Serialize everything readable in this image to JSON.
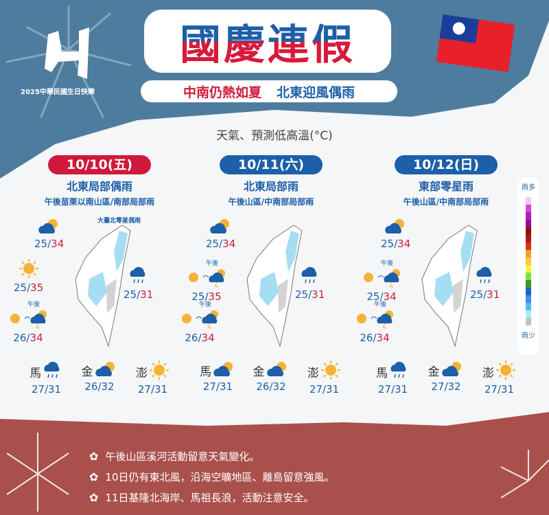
{
  "header": {
    "title": "國慶連假",
    "subtitle_red": "中南仍熱如夏",
    "subtitle_blue": "北東迎風偶雨",
    "logo_caption": "2025中華民國生日快樂"
  },
  "colors": {
    "top_bg": "#4e7c9e",
    "bottom_bg": "#a9504c",
    "blue": "#1d5fa8",
    "red": "#d0193a"
  },
  "section_title": "天氣、預測低高溫(°C)",
  "days": [
    {
      "date": "10/10(五)",
      "pill_color": "#d0193a",
      "headline": "北東局部偶雨",
      "sub": "午後苗栗以南山區/南部局部雨",
      "note": "大臺北零星偶雨",
      "stations": [
        {
          "pos": "nw",
          "icon": "partly-cloudy",
          "low": "25",
          "high": "34"
        },
        {
          "pos": "w",
          "icon": "sunny",
          "low": "25",
          "high": "35"
        },
        {
          "pos": "sw",
          "icon": "sunny-then-thunder",
          "label": "午後",
          "low": "26",
          "high": "34"
        },
        {
          "pos": "e",
          "icon": "rain",
          "low": "25",
          "high": "31"
        }
      ],
      "islands": [
        {
          "name": "馬",
          "icon": "rain",
          "temp": "27/31"
        },
        {
          "name": "金",
          "icon": "partly-cloudy",
          "temp": "26/32"
        },
        {
          "name": "澎",
          "icon": "sunny",
          "temp": "27/31"
        }
      ]
    },
    {
      "date": "10/11(六)",
      "pill_color": "#1d5fa8",
      "headline": "北東局部雨",
      "sub": "午後山區/中南部局部雨",
      "stations": [
        {
          "pos": "nw",
          "icon": "partly-cloudy",
          "low": "25",
          "high": "34"
        },
        {
          "pos": "w",
          "icon": "sunny-then-thunder",
          "label": "午後",
          "low": "25",
          "high": "35"
        },
        {
          "pos": "sw",
          "icon": "sunny-then-thunder",
          "label": "午後",
          "low": "26",
          "high": "34"
        },
        {
          "pos": "e",
          "icon": "rain",
          "low": "25",
          "high": "31"
        }
      ],
      "islands": [
        {
          "name": "馬",
          "icon": "partly-cloudy",
          "temp": "27/31"
        },
        {
          "name": "金",
          "icon": "partly-cloudy",
          "temp": "26/32"
        },
        {
          "name": "澎",
          "icon": "sunny",
          "temp": "27/31"
        }
      ]
    },
    {
      "date": "10/12(日)",
      "pill_color": "#1d5fa8",
      "headline": "東部零星雨",
      "sub": "午後山區/中南部局部雨",
      "stations": [
        {
          "pos": "nw",
          "icon": "partly-cloudy",
          "low": "25",
          "high": "34"
        },
        {
          "pos": "w",
          "icon": "sunny-then-thunder",
          "label": "午後",
          "low": "25",
          "high": "34"
        },
        {
          "pos": "sw",
          "icon": "sunny-then-thunder",
          "label": "午後",
          "low": "26",
          "high": "34"
        },
        {
          "pos": "e",
          "icon": "rain",
          "low": "25",
          "high": "31"
        }
      ],
      "islands": [
        {
          "name": "馬",
          "icon": "rain",
          "temp": "27/31"
        },
        {
          "name": "金",
          "icon": "partly-cloudy",
          "temp": "27/32"
        },
        {
          "name": "澎",
          "icon": "sunny",
          "temp": "27/31"
        }
      ]
    }
  ],
  "legend": {
    "top": "雨多",
    "bottom": "雨少",
    "colors": [
      "#f0c8f0",
      "#e040e0",
      "#b020c0",
      "#901090",
      "#901010",
      "#b01818",
      "#e03020",
      "#f0a030",
      "#f8c840",
      "#f8f040",
      "#80e040",
      "#409030",
      "#2060d0",
      "#4090e8",
      "#60b8f0",
      "#a0f0f8",
      "#c0c0c0"
    ]
  },
  "tips": [
    "午後山區溪河活動留意天氣變化。",
    "10日仍有東北風，沿海空曠地區、離島留意強風。",
    "11日基隆北海岸、馬祖長浪，活動注意安全。"
  ]
}
